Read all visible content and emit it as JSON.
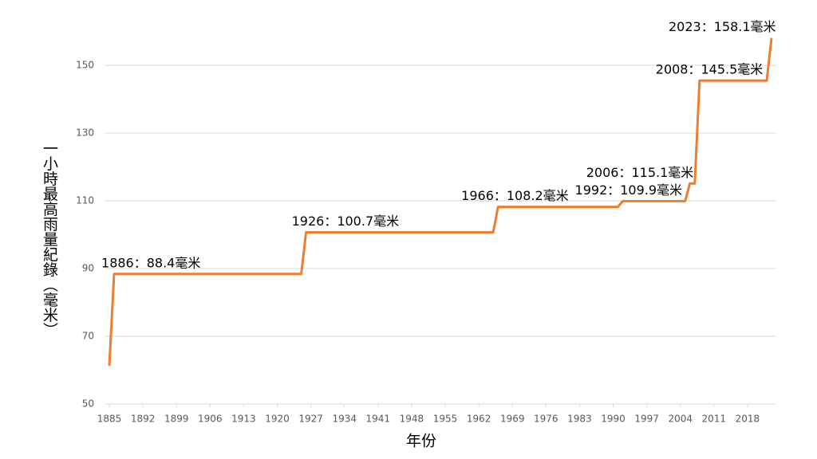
{
  "chart_data": {
    "type": "line",
    "x_label": "年份",
    "y_label": "一小時最高雨量紀錄（毫米）",
    "x": [
      1885,
      1886,
      1925,
      1926,
      1965,
      1966,
      1991,
      1992,
      2005,
      2006,
      2007,
      2008,
      2022,
      2023
    ],
    "values": [
      61.3,
      88.4,
      88.4,
      100.7,
      100.7,
      108.2,
      108.2,
      109.9,
      109.9,
      115.1,
      115.1,
      145.5,
      145.5,
      158.1
    ],
    "value_labels": [
      null,
      "1886：88.4毫米",
      null,
      "1926：100.7毫米",
      null,
      "1966：108.2毫米",
      null,
      "1992：109.9毫米",
      null,
      "2006：115.1毫米",
      null,
      "2008：145.5毫米",
      null,
      "2023：158.1毫米"
    ],
    "color": "#ed7d31",
    "xlim": [
      1884,
      2024
    ],
    "xticks": [
      1885,
      1892,
      1899,
      1906,
      1913,
      1920,
      1927,
      1934,
      1941,
      1948,
      1955,
      1962,
      1969,
      1976,
      1983,
      1990,
      1997,
      2004,
      2011,
      2018
    ],
    "ylim": [
      50,
      160
    ],
    "yticks": [
      50,
      70,
      90,
      110,
      130,
      150
    ],
    "grid": true
  }
}
